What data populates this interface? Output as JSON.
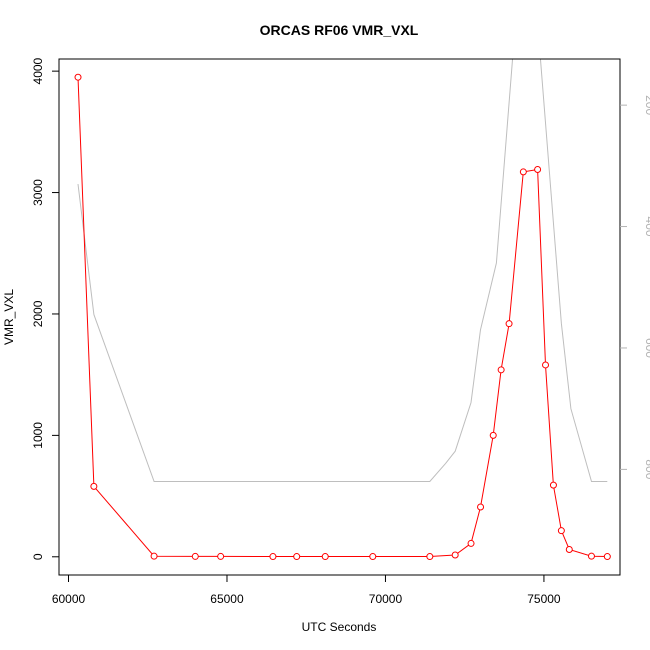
{
  "chart_data": {
    "type": "line",
    "title": "ORCAS RF06 VMR_VXL",
    "xlabel": "UTC Seconds",
    "ylabel": "VMR_VXL",
    "xlim": [
      59700,
      77400
    ],
    "ylim": [
      -150,
      4100
    ],
    "x_ticks": [
      60000,
      65000,
      70000,
      75000
    ],
    "x_tick_labels": [
      "60000",
      "65000",
      "70000",
      "75000"
    ],
    "y_ticks": [
      0,
      1000,
      2000,
      3000,
      4000
    ],
    "y_tick_labels": [
      "0",
      "1000",
      "2000",
      "3000",
      "4000"
    ],
    "y2_reversed": true,
    "y2lim": [
      124,
      974
    ],
    "y2_ticks": [
      200,
      400,
      600,
      800
    ],
    "y2_tick_labels": [
      "200",
      "400",
      "600",
      "800"
    ],
    "grid": false,
    "colors": {
      "primary": "#ff0000",
      "secondary": "#bebebe",
      "frame": "#000000",
      "right_axis": "#b3b3b3"
    },
    "series": [
      {
        "axis": "left",
        "style": "line-points",
        "x": [
          60300,
          60800,
          62700,
          64000,
          64800,
          66450,
          67200,
          68100,
          69600,
          71400,
          72200,
          72700,
          73000,
          73400,
          73650,
          73900,
          74350,
          74800,
          75050,
          75300,
          75550,
          75800,
          76500,
          77000
        ],
        "y": [
          3950,
          580,
          5,
          3,
          3,
          2,
          2,
          2,
          2,
          2,
          15,
          110,
          410,
          1000,
          1540,
          1920,
          3170,
          3190,
          1580,
          590,
          215,
          60,
          5,
          2
        ]
      },
      {
        "axis": "right",
        "style": "line",
        "x": [
          60300,
          60800,
          62700,
          71400,
          71900,
          72200,
          72700,
          73000,
          73500,
          74050,
          74850,
          75550,
          75850,
          76500,
          77000
        ],
        "y": [
          330,
          545,
          820,
          820,
          790,
          770,
          690,
          570,
          460,
          98,
          98,
          560,
          700,
          820,
          820
        ]
      }
    ]
  }
}
